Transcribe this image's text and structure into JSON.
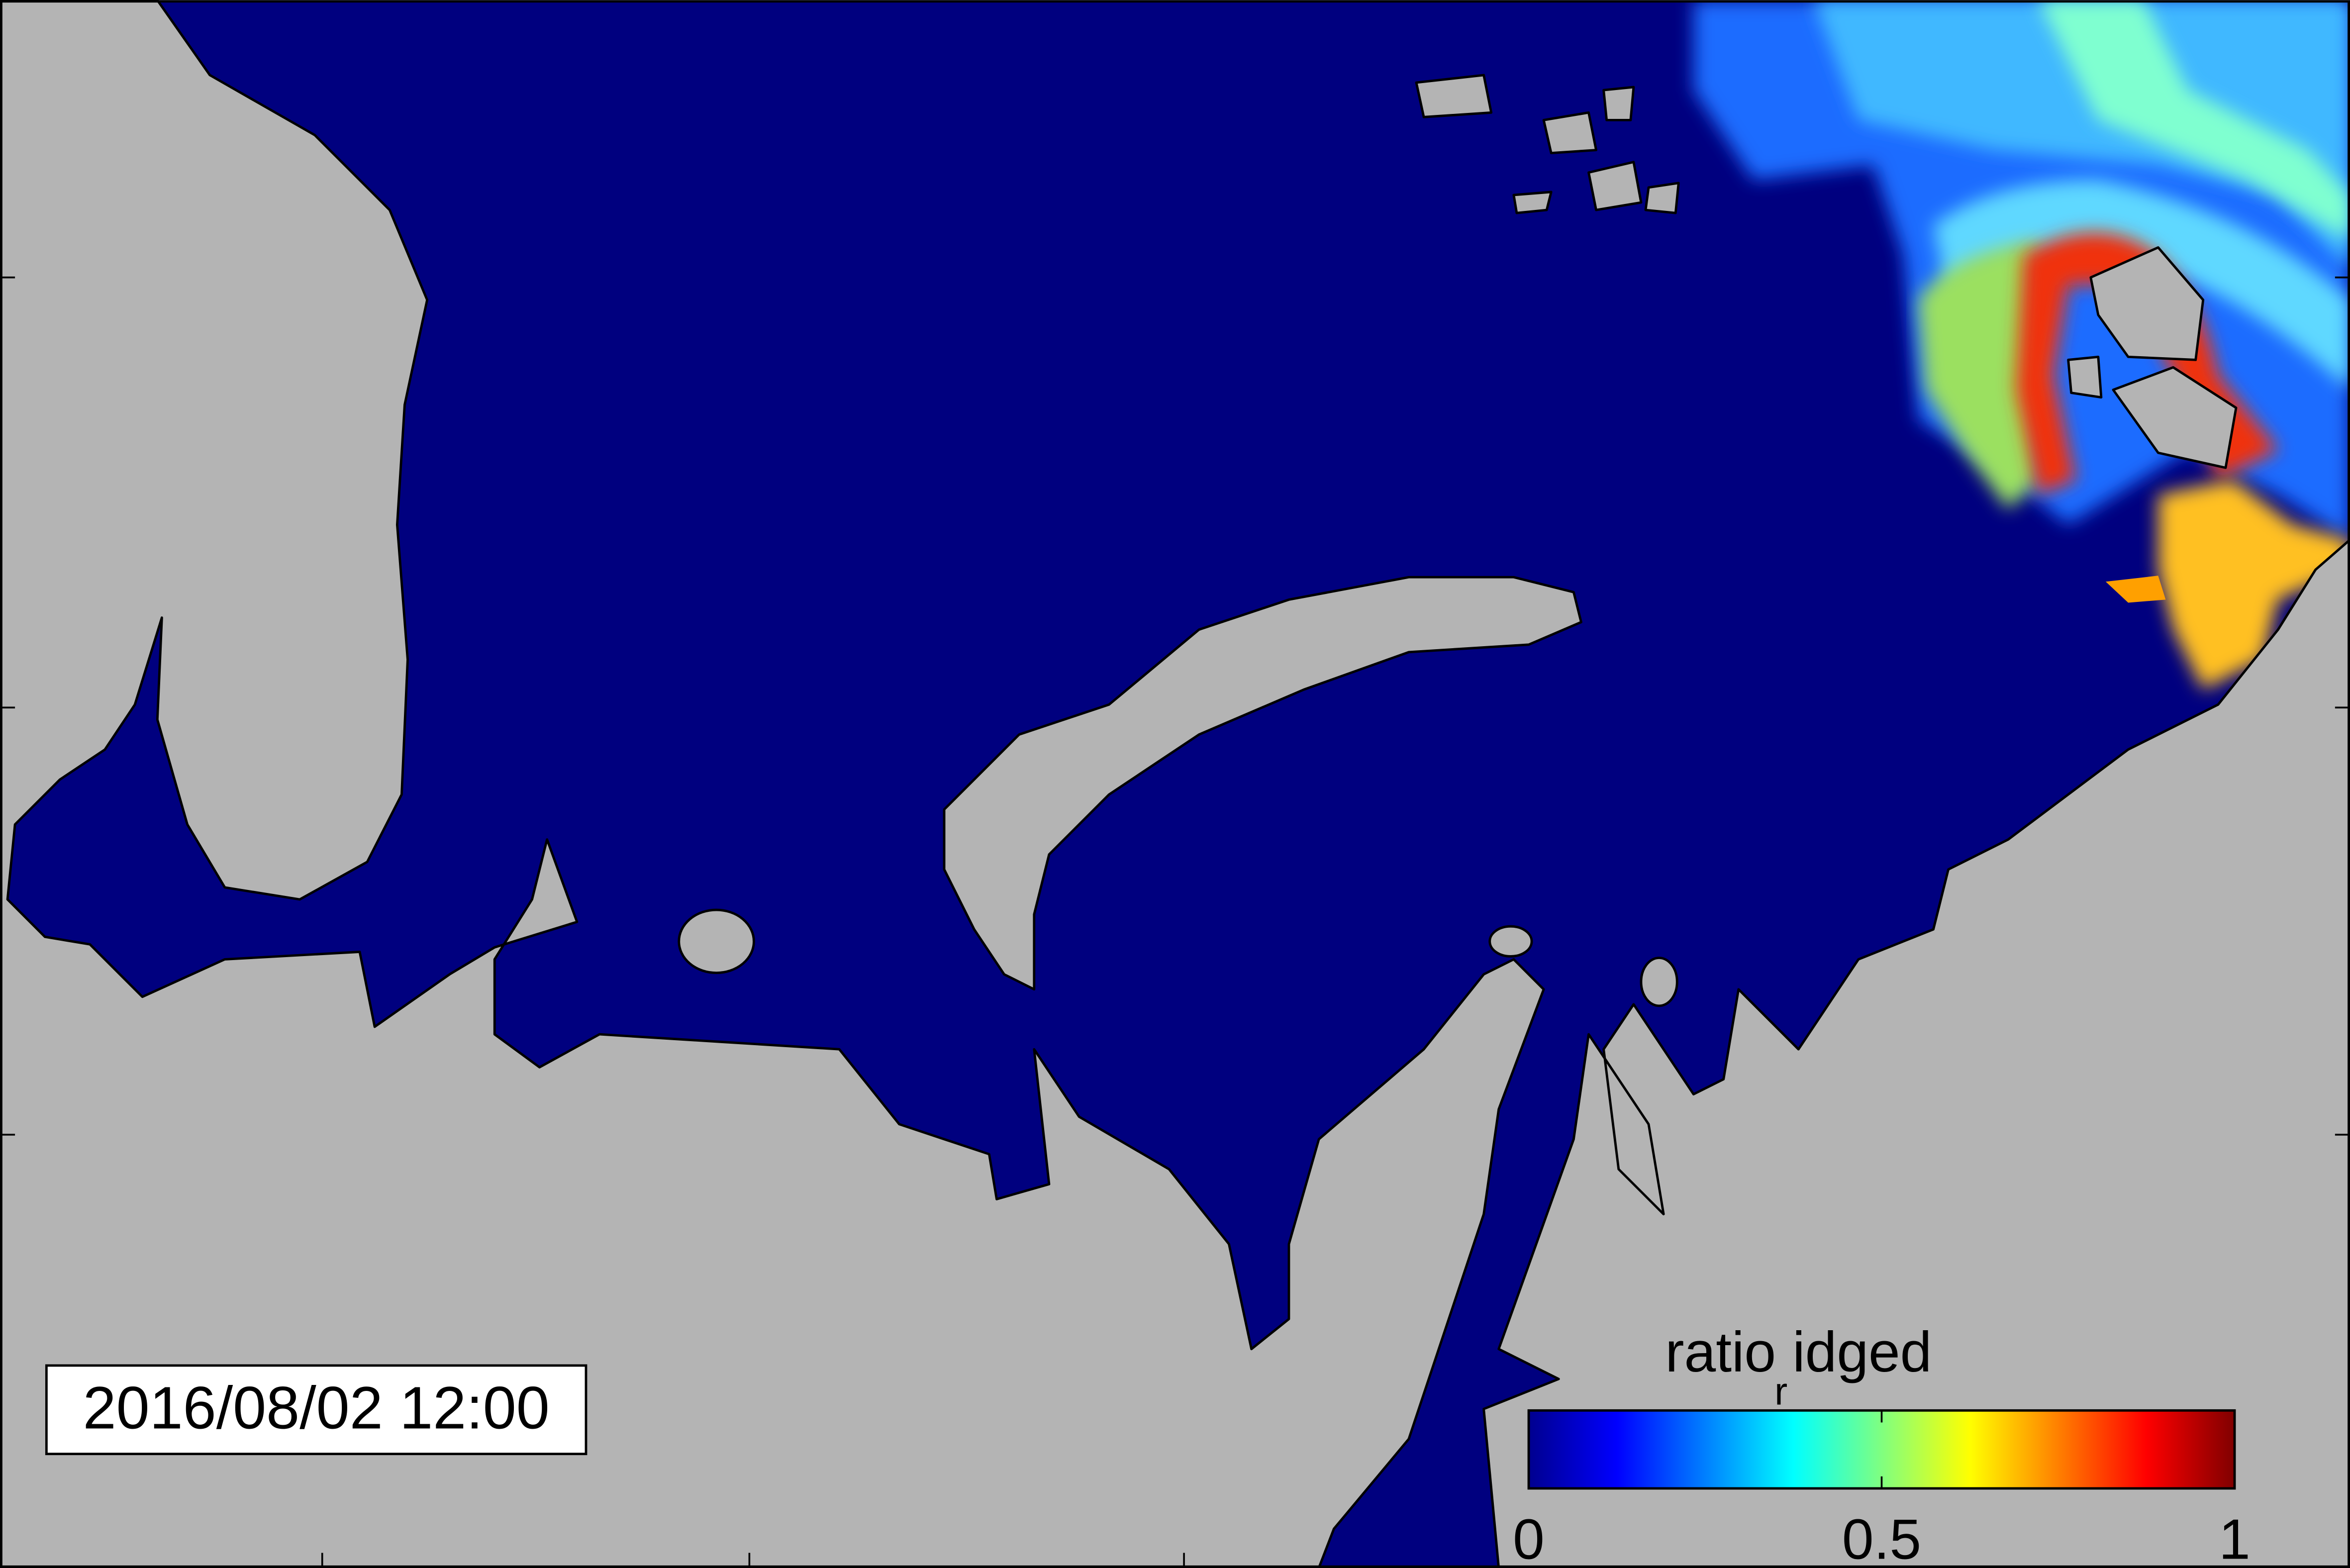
{
  "timestamp": "2016/08/02 12:00",
  "colorbar": {
    "label": {
      "base": "ratio",
      "subscript": "r",
      "rest": "idged"
    },
    "lim": [
      0,
      1
    ],
    "ticks": [
      0,
      0.5,
      1
    ],
    "colormap": "jet"
  }
}
